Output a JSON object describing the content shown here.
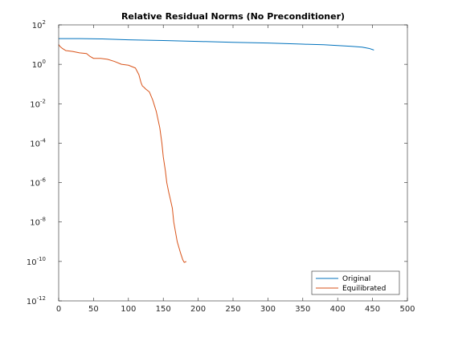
{
  "chart_data": {
    "type": "line",
    "title": "Relative Residual Norms (No Preconditioner)",
    "xlabel": "",
    "ylabel": "",
    "xlim": [
      0,
      500
    ],
    "ylim": [
      1e-12,
      100
    ],
    "yscale": "log",
    "grid": false,
    "legend_position": "bottom-right",
    "x_ticks": [
      0,
      50,
      100,
      150,
      200,
      250,
      300,
      350,
      400,
      450,
      500
    ],
    "y_ticks": [
      {
        "value": 100,
        "base": "10",
        "exp": "2"
      },
      {
        "value": 1,
        "base": "10",
        "exp": "0"
      },
      {
        "value": 0.01,
        "base": "10",
        "exp": "-2"
      },
      {
        "value": 0.0001,
        "base": "10",
        "exp": "-4"
      },
      {
        "value": 1e-06,
        "base": "10",
        "exp": "-6"
      },
      {
        "value": 1e-08,
        "base": "10",
        "exp": "-8"
      },
      {
        "value": 1e-10,
        "base": "10",
        "exp": "-10"
      },
      {
        "value": 1e-12,
        "base": "10",
        "exp": "-12"
      }
    ],
    "series": [
      {
        "name": "Original",
        "color": "#0072BD",
        "x": [
          0,
          30,
          60,
          100,
          150,
          200,
          250,
          300,
          350,
          380,
          400,
          420,
          435,
          445,
          452
        ],
        "y": [
          20,
          20,
          19.5,
          17.5,
          16,
          14.5,
          13,
          12,
          10.5,
          9.8,
          9,
          8.2,
          7.4,
          6.4,
          5.3
        ]
      },
      {
        "name": "Equilibrated",
        "color": "#D95319",
        "x": [
          0,
          2,
          5,
          10,
          20,
          30,
          40,
          45,
          50,
          60,
          70,
          80,
          90,
          100,
          110,
          115,
          118,
          120,
          122,
          125,
          130,
          135,
          140,
          145,
          148,
          150,
          153,
          155,
          158,
          160,
          163,
          165,
          170,
          175,
          178,
          180,
          183
        ],
        "y": [
          10,
          8,
          6.5,
          5,
          4.5,
          3.8,
          3.5,
          2.5,
          2,
          2,
          1.8,
          1.4,
          1,
          0.9,
          0.65,
          0.3,
          0.12,
          0.08,
          0.07,
          0.055,
          0.04,
          0.015,
          0.004,
          0.0006,
          0.0001,
          2e-05,
          4e-06,
          1e-06,
          3e-07,
          1.5e-07,
          5e-08,
          1e-08,
          1e-09,
          2.5e-10,
          1.2e-10,
          9e-11,
          1e-10
        ]
      }
    ]
  }
}
